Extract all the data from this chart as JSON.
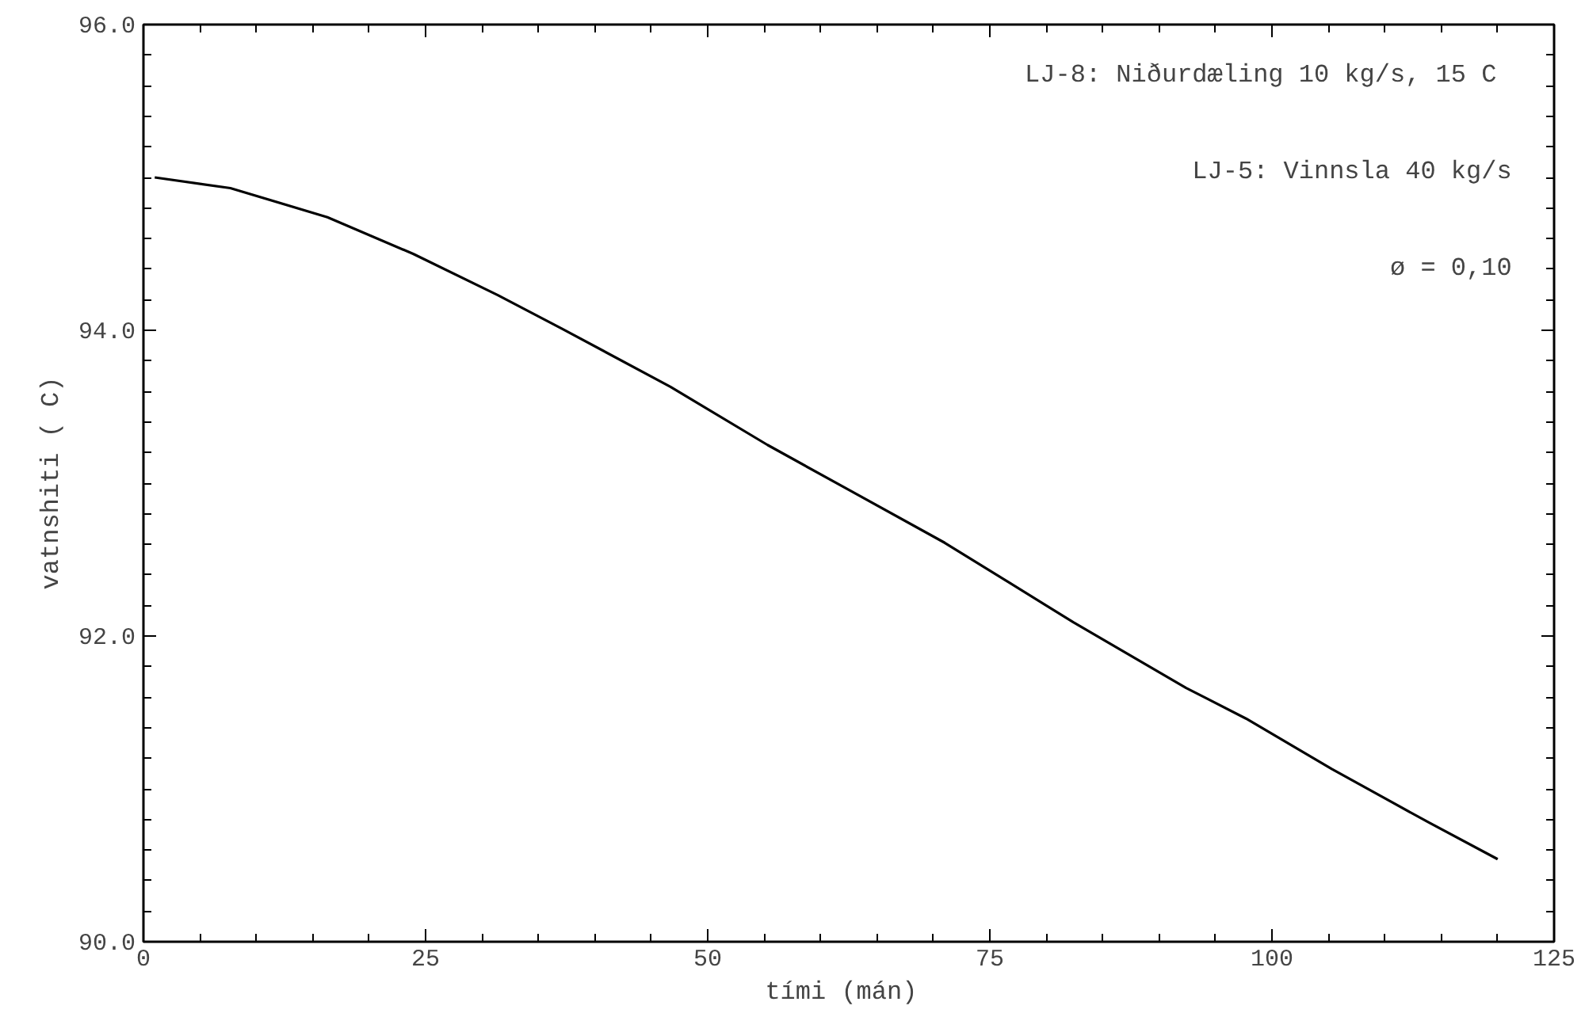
{
  "chart_data": {
    "type": "line",
    "xlabel": "tími  (mán)",
    "ylabel": "vatnshiti ( C)",
    "annotations": [
      "LJ-8: Niðurdæling 10 kg/s,  15 C",
      "LJ-5: Vinnsla 40 kg/s",
      "ø = 0,10"
    ],
    "series": [
      {
        "color": "#000000",
        "x": [
          1,
          7.7,
          16.3,
          23.9,
          31.4,
          37.1,
          46.7,
          55.3,
          62.4,
          71,
          82.4,
          92.4,
          97.7,
          105.3,
          113.9,
          120
        ],
        "values": [
          95.0,
          94.93,
          94.74,
          94.5,
          94.23,
          94.01,
          93.63,
          93.25,
          92.96,
          92.61,
          92.09,
          91.66,
          91.46,
          91.13,
          90.78,
          90.54
        ]
      }
    ],
    "xlim": [
      0,
      125
    ],
    "ylim": [
      90,
      96
    ],
    "xticks": [
      0,
      25,
      50,
      75,
      100,
      125
    ],
    "yticks": [
      {
        "value": 90,
        "label": "90.0"
      },
      {
        "value": 92,
        "label": "92.0"
      },
      {
        "value": 94,
        "label": "94.0"
      },
      {
        "value": 96,
        "label": "96.0"
      }
    ],
    "grid": false,
    "marker": "none",
    "line_style": "solid"
  }
}
